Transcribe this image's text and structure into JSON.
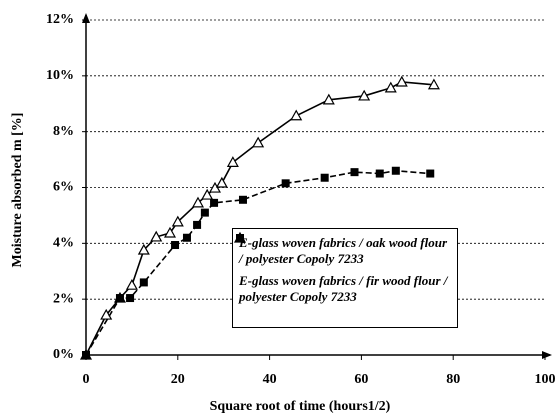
{
  "chart_data": {
    "type": "scatter",
    "xlabel": "Square root of time (hours1/2)",
    "ylabel": "Moisture absorbed  m [%]",
    "xlim": [
      0,
      100
    ],
    "xticks": [
      0,
      20,
      40,
      60,
      80,
      100
    ],
    "ylim": [
      0,
      12
    ],
    "yticks": [
      {
        "value": 0,
        "label": "0%"
      },
      {
        "value": 2,
        "label": "2%"
      },
      {
        "value": 4,
        "label": "4%"
      },
      {
        "value": 6,
        "label": "6%"
      },
      {
        "value": 8,
        "label": "8%"
      },
      {
        "value": 10,
        "label": "10%"
      },
      {
        "value": 12,
        "label": "12%"
      }
    ],
    "grid": true,
    "series": [
      {
        "name": "E-glass woven fabrics / oak wood flour / polyester Copoly 7233",
        "color": "#000000",
        "marker": "triangle",
        "line": "solid",
        "x": [
          0,
          4.4,
          7.4,
          10,
          12.6,
          15.3,
          18.3,
          20,
          24.4,
          26.4,
          28.1,
          29.6,
          32,
          37.5,
          45.8,
          52.9,
          60.6,
          66.4,
          68.8,
          75.8
        ],
        "values": [
          0,
          1.43,
          2.04,
          2.5,
          3.76,
          4.23,
          4.37,
          4.77,
          5.45,
          5.73,
          5.98,
          6.16,
          6.9,
          7.6,
          8.57,
          9.14,
          9.28,
          9.57,
          9.78,
          9.68
        ]
      },
      {
        "name": "E-glass woven fabrics / fir wood flour / polyester Copoly 7233",
        "color": "#000000",
        "marker": "square",
        "line": "dashed",
        "x": [
          0,
          7.4,
          9.6,
          12.6,
          19.4,
          22,
          24.2,
          25.9,
          27.9,
          34.2,
          43.5,
          52,
          58.5,
          64,
          67.5,
          75
        ],
        "values": [
          0,
          2.04,
          2.04,
          2.6,
          3.94,
          4.2,
          4.66,
          5.1,
          5.45,
          5.56,
          6.15,
          6.35,
          6.55,
          6.5,
          6.6,
          6.5
        ]
      }
    ]
  }
}
